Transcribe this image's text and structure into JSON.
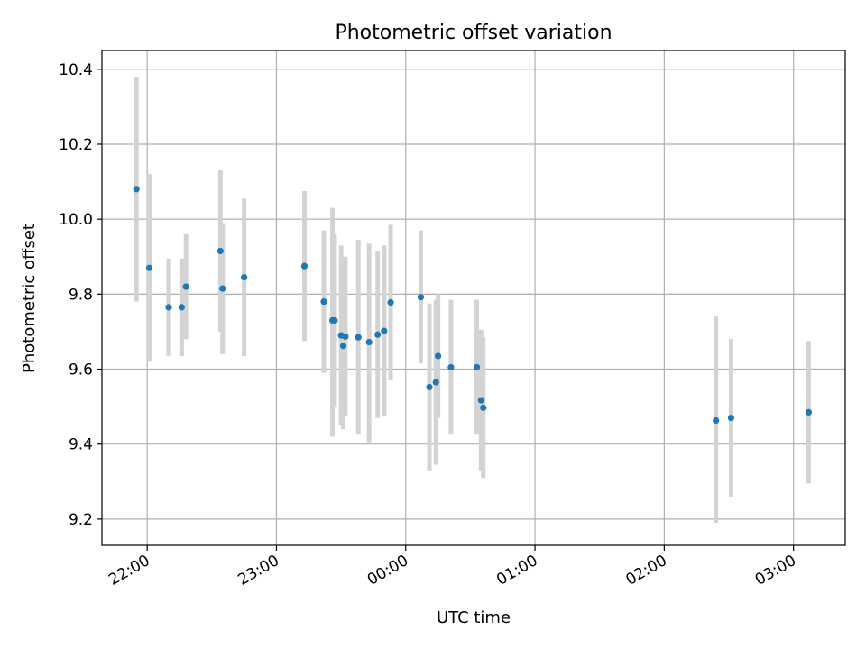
{
  "chart_data": {
    "type": "scatter",
    "title": "Photometric offset variation",
    "xlabel": "UTC time",
    "ylabel": "Photometric offset",
    "xlim": [
      "21:39",
      "03:24"
    ],
    "ylim": [
      9.13,
      10.45
    ],
    "x_ticks": [
      "22:00",
      "23:00",
      "00:00",
      "01:00",
      "02:00",
      "03:00"
    ],
    "y_ticks": [
      "9.2",
      "9.4",
      "9.6",
      "9.8",
      "10.0",
      "10.2",
      "10.4"
    ],
    "grid": true,
    "marker_color": "#1f77b4",
    "errorbar_color": "#d3d3d3",
    "points": [
      {
        "x": "21:55",
        "y": 10.08,
        "ylow": 9.78,
        "yhigh": 10.38
      },
      {
        "x": "22:01",
        "y": 9.87,
        "ylow": 9.62,
        "yhigh": 10.12
      },
      {
        "x": "22:10",
        "y": 9.765,
        "ylow": 9.635,
        "yhigh": 9.895
      },
      {
        "x": "22:16",
        "y": 9.765,
        "ylow": 9.635,
        "yhigh": 9.895
      },
      {
        "x": "22:18",
        "y": 9.82,
        "ylow": 9.68,
        "yhigh": 9.96
      },
      {
        "x": "22:34",
        "y": 9.915,
        "ylow": 9.7,
        "yhigh": 10.13
      },
      {
        "x": "22:35",
        "y": 9.815,
        "ylow": 9.64,
        "yhigh": 9.99
      },
      {
        "x": "22:45",
        "y": 9.845,
        "ylow": 9.635,
        "yhigh": 10.055
      },
      {
        "x": "23:13",
        "y": 9.875,
        "ylow": 9.675,
        "yhigh": 10.075
      },
      {
        "x": "23:22",
        "y": 9.78,
        "ylow": 9.59,
        "yhigh": 9.97
      },
      {
        "x": "23:26",
        "y": 9.73,
        "ylow": 9.42,
        "yhigh": 10.03
      },
      {
        "x": "23:27",
        "y": 9.73,
        "ylow": 9.5,
        "yhigh": 9.96
      },
      {
        "x": "23:30",
        "y": 9.69,
        "ylow": 9.45,
        "yhigh": 9.93
      },
      {
        "x": "23:31",
        "y": 9.662,
        "ylow": 9.44,
        "yhigh": 9.88
      },
      {
        "x": "23:32",
        "y": 9.687,
        "ylow": 9.475,
        "yhigh": 9.9
      },
      {
        "x": "23:38",
        "y": 9.685,
        "ylow": 9.425,
        "yhigh": 9.945
      },
      {
        "x": "23:43",
        "y": 9.672,
        "ylow": 9.405,
        "yhigh": 9.935
      },
      {
        "x": "23:47",
        "y": 9.692,
        "ylow": 9.47,
        "yhigh": 9.915
      },
      {
        "x": "23:50",
        "y": 9.702,
        "ylow": 9.475,
        "yhigh": 9.93
      },
      {
        "x": "23:53",
        "y": 9.778,
        "ylow": 9.57,
        "yhigh": 9.985
      },
      {
        "x": "00:07",
        "y": 9.792,
        "ylow": 9.615,
        "yhigh": 9.97
      },
      {
        "x": "00:11",
        "y": 9.552,
        "ylow": 9.33,
        "yhigh": 9.775
      },
      {
        "x": "00:14",
        "y": 9.565,
        "ylow": 9.345,
        "yhigh": 9.785
      },
      {
        "x": "00:15",
        "y": 9.635,
        "ylow": 9.47,
        "yhigh": 9.8
      },
      {
        "x": "00:21",
        "y": 9.605,
        "ylow": 9.425,
        "yhigh": 9.785
      },
      {
        "x": "00:33",
        "y": 9.605,
        "ylow": 9.425,
        "yhigh": 9.785
      },
      {
        "x": "00:35",
        "y": 9.517,
        "ylow": 9.33,
        "yhigh": 9.705
      },
      {
        "x": "00:36",
        "y": 9.497,
        "ylow": 9.31,
        "yhigh": 9.685
      },
      {
        "x": "02:24",
        "y": 9.463,
        "ylow": 9.19,
        "yhigh": 9.74
      },
      {
        "x": "02:31",
        "y": 9.47,
        "ylow": 9.26,
        "yhigh": 9.68
      },
      {
        "x": "03:07",
        "y": 9.485,
        "ylow": 9.295,
        "yhigh": 9.675
      }
    ]
  }
}
